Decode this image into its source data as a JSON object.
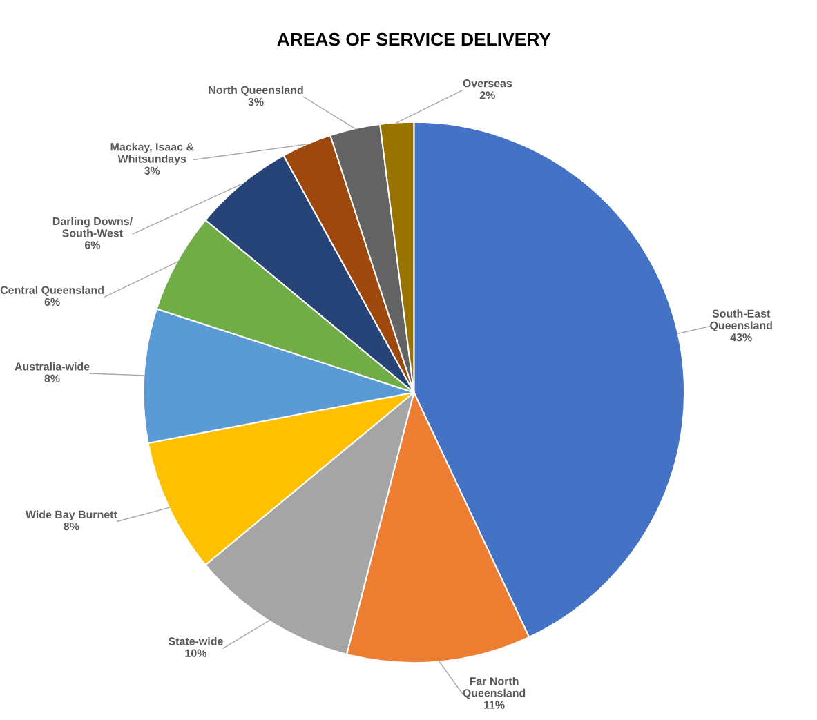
{
  "chart_data": {
    "type": "pie",
    "title": "AREAS OF SERVICE DELIVERY",
    "categories": [
      "South-East\nQueensland",
      "Far North\nQueensland",
      "State-wide",
      "Wide Bay Burnett",
      "Australia-wide",
      "Central Queensland",
      "Darling Downs/\nSouth-West",
      "Mackay, Isaac &\nWhitsundays",
      "North Queensland",
      "Overseas"
    ],
    "values": [
      43,
      11,
      10,
      8,
      8,
      6,
      6,
      3,
      3,
      2
    ],
    "value_labels": [
      "43%",
      "11%",
      "10%",
      "8%",
      "8%",
      "6%",
      "6%",
      "3%",
      "3%",
      "2%"
    ],
    "colors": [
      "#4472c4",
      "#ed7d31",
      "#a5a5a5",
      "#ffc000",
      "#5b9bd5",
      "#70ad47",
      "#264478",
      "#9e480e",
      "#636363",
      "#997300"
    ],
    "legend": false
  }
}
